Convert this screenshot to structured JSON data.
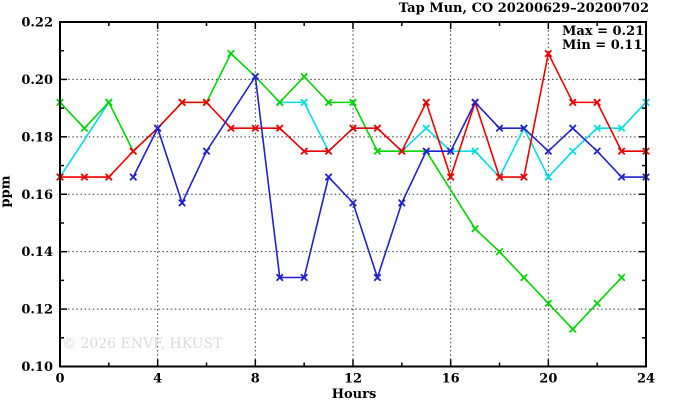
{
  "title": "Tap Mun, CO 20200629–20200702",
  "annotation": {
    "max_label": "Max = 0.21",
    "min_label": "Min = 0.11"
  },
  "watermark": "© 2026 ENVF, HKUST",
  "chart_data": {
    "type": "line",
    "title": "Tap Mun, CO 20200629–20200702",
    "xlabel": "Hours",
    "ylabel": "ppm",
    "xlim": [
      0,
      24
    ],
    "ylim": [
      0.1,
      0.22
    ],
    "grid": true,
    "legend_position": "none",
    "x_ticks": [
      {
        "label": "0",
        "value": 0
      },
      {
        "label": "4",
        "value": 4
      },
      {
        "label": "8",
        "value": 8
      },
      {
        "label": "12",
        "value": 12
      },
      {
        "label": "16",
        "value": 16
      },
      {
        "label": "20",
        "value": 20
      },
      {
        "label": "24",
        "value": 24
      }
    ],
    "x_minor_ticks": [
      2,
      6,
      10,
      14,
      18,
      22
    ],
    "y_ticks": [
      {
        "label": "0.10",
        "value": 0.1
      },
      {
        "label": "0.12",
        "value": 0.12
      },
      {
        "label": "0.14",
        "value": 0.14
      },
      {
        "label": "0.16",
        "value": 0.16
      },
      {
        "label": "0.18",
        "value": 0.18
      },
      {
        "label": "0.20",
        "value": 0.2
      },
      {
        "label": "0.22",
        "value": 0.22
      }
    ],
    "y_minor_ticks": [
      0.11,
      0.13,
      0.15,
      0.17,
      0.19,
      0.21
    ],
    "stats": {
      "max": 0.21,
      "min": 0.11
    },
    "series": [
      {
        "name": "day4-cyan",
        "color": "#00dde6",
        "segments": [
          [
            [
              0,
              0.166
            ],
            [
              2,
              0.192
            ]
          ],
          [
            [
              9,
              0.192
            ],
            [
              10,
              0.192
            ],
            [
              11,
              0.175
            ],
            [
              12,
              0.183
            ],
            [
              13,
              0.183
            ],
            [
              14,
              0.175
            ],
            [
              15,
              0.183
            ],
            [
              16,
              0.175
            ],
            [
              17,
              0.175
            ],
            [
              18,
              0.166
            ],
            [
              19,
              0.183
            ],
            [
              20,
              0.166
            ],
            [
              21,
              0.175
            ],
            [
              22,
              0.183
            ],
            [
              23,
              0.183
            ],
            [
              24,
              0.192
            ]
          ]
        ]
      },
      {
        "name": "day2-green",
        "color": "#00d500",
        "segments": [
          [
            [
              0,
              0.192
            ],
            [
              1,
              0.183
            ],
            [
              2,
              0.192
            ],
            [
              3,
              0.175
            ],
            [
              4,
              0.183
            ],
            [
              5,
              0.192
            ],
            [
              6,
              0.192
            ],
            [
              7,
              0.209
            ],
            [
              8,
              0.201
            ],
            [
              9,
              0.192
            ],
            [
              10,
              0.201
            ],
            [
              11,
              0.192
            ],
            [
              12,
              0.192
            ],
            [
              13,
              0.175
            ],
            [
              14,
              0.175
            ],
            [
              15,
              0.175
            ],
            [
              17,
              0.148
            ],
            [
              18,
              0.14
            ],
            [
              19,
              0.131
            ],
            [
              20,
              0.122
            ],
            [
              21,
              0.113
            ],
            [
              22,
              0.122
            ],
            [
              23,
              0.131
            ]
          ]
        ]
      },
      {
        "name": "day1-red",
        "color": "#ee0000",
        "segments": [
          [
            [
              0,
              0.166
            ],
            [
              1,
              0.166
            ],
            [
              2,
              0.166
            ],
            [
              3,
              0.175
            ],
            [
              4,
              0.183
            ],
            [
              5,
              0.192
            ],
            [
              6,
              0.192
            ],
            [
              7,
              0.183
            ],
            [
              8,
              0.183
            ],
            [
              9,
              0.183
            ],
            [
              10,
              0.175
            ],
            [
              11,
              0.175
            ],
            [
              12,
              0.183
            ],
            [
              13,
              0.183
            ],
            [
              14,
              0.175
            ],
            [
              15,
              0.192
            ],
            [
              16,
              0.166
            ],
            [
              17,
              0.192
            ],
            [
              18,
              0.166
            ],
            [
              19,
              0.166
            ],
            [
              20,
              0.209
            ],
            [
              21,
              0.192
            ],
            [
              22,
              0.192
            ],
            [
              23,
              0.175
            ],
            [
              24,
              0.175
            ]
          ]
        ]
      },
      {
        "name": "day3-blue",
        "color": "#2222cc",
        "segments": [
          [
            [
              3,
              0.166
            ],
            [
              4,
              0.183
            ],
            [
              5,
              0.157
            ],
            [
              6,
              0.175
            ],
            [
              8,
              0.201
            ],
            [
              9,
              0.131
            ],
            [
              10,
              0.131
            ],
            [
              11,
              0.166
            ],
            [
              12,
              0.157
            ],
            [
              13,
              0.131
            ],
            [
              14,
              0.157
            ],
            [
              15,
              0.175
            ],
            [
              16,
              0.175
            ],
            [
              17,
              0.192
            ],
            [
              18,
              0.183
            ],
            [
              19,
              0.183
            ],
            [
              20,
              0.175
            ],
            [
              21,
              0.183
            ],
            [
              22,
              0.175
            ],
            [
              23,
              0.166
            ],
            [
              24,
              0.166
            ]
          ]
        ]
      }
    ]
  }
}
